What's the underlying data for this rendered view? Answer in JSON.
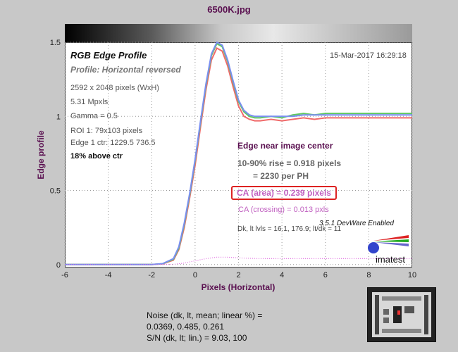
{
  "window_title": "6500K.jpg",
  "panel": {
    "heading": "RGB Edge Profile",
    "profile": "Profile: Horizontal reversed",
    "timestamp": "15-Mar-2017 16:29:18",
    "info_lines": [
      "2592 x 2048 pixels (WxH)",
      "5.31 Mpxls",
      "Gamma = 0.5",
      "ROI 1: 79x103 pixels",
      "Edge 1 ctr: 1229.5  736.5"
    ],
    "position": "18% above ctr"
  },
  "annotations": {
    "edge_title": "Edge near image center",
    "rise": "10-90% rise = 0.918 pixels",
    "per_ph": "= 2230 per PH",
    "ca_area": "CA (area) = 0.239 pixels",
    "ca_crossing": "CA (crossing) = 0.013 pxls",
    "levels": "Dk, lt lvls = 16.1, 176.9;  lt/dk = 11",
    "version": "3.5.1  DevWare Enabled",
    "brand": "imatest"
  },
  "noise": {
    "line1": "Noise (dk, lt, mean; linear %) =",
    "line2": "0.0369,  0.485,  0.261",
    "line3": "S/N (dk, lt; lin.) = 9.03,  100"
  },
  "colors": {
    "red": "#f06a6a",
    "green": "#60c860",
    "blue": "#7a8ef0",
    "pink": "#e070e0",
    "label": "#5a1050"
  },
  "chart_data": {
    "type": "line",
    "xlabel": "Pixels (Horizontal)",
    "ylabel": "Edge profile",
    "xlim": [
      -6,
      10
    ],
    "ylim": [
      -0.02,
      1.5
    ],
    "xticks": [
      "-6",
      "-4",
      "-2",
      "0",
      "2",
      "4",
      "6",
      "8",
      "10"
    ],
    "yticks": [
      "0",
      "0.5",
      "1",
      "1.5"
    ],
    "series": [
      {
        "color": "red",
        "x": [
          -6,
          -3,
          -2,
          -1.5,
          -1,
          -0.75,
          -0.5,
          -0.25,
          0,
          0.25,
          0.5,
          0.75,
          1,
          1.25,
          1.5,
          1.75,
          2,
          2.25,
          2.5,
          2.75,
          3,
          3.5,
          4,
          4.5,
          5,
          5.5,
          6,
          7,
          8,
          9,
          10
        ],
        "y": [
          0,
          0,
          0,
          0.005,
          0.03,
          0.1,
          0.25,
          0.45,
          0.67,
          0.93,
          1.18,
          1.38,
          1.46,
          1.44,
          1.34,
          1.2,
          1.07,
          1.0,
          0.98,
          0.97,
          0.97,
          0.98,
          0.97,
          0.98,
          0.99,
          0.98,
          0.99,
          0.99,
          0.99,
          0.99,
          0.99
        ]
      },
      {
        "color": "green",
        "x": [
          -6,
          -3,
          -2,
          -1.5,
          -1,
          -0.75,
          -0.5,
          -0.25,
          0,
          0.25,
          0.5,
          0.75,
          1,
          1.25,
          1.5,
          1.75,
          2,
          2.25,
          2.5,
          2.75,
          3,
          3.5,
          4,
          4.5,
          5,
          5.5,
          6,
          7,
          8,
          9,
          10
        ],
        "y": [
          0,
          0,
          0,
          0.005,
          0.035,
          0.11,
          0.27,
          0.47,
          0.7,
          0.96,
          1.21,
          1.41,
          1.49,
          1.47,
          1.37,
          1.23,
          1.1,
          1.03,
          1.0,
          0.99,
          0.99,
          1.0,
          0.99,
          1.01,
          1.02,
          1.01,
          1.02,
          1.02,
          1.02,
          1.02,
          1.02
        ]
      },
      {
        "color": "blue",
        "x": [
          -6,
          -3,
          -2,
          -1.5,
          -1,
          -0.75,
          -0.5,
          -0.25,
          0,
          0.25,
          0.5,
          0.75,
          1,
          1.25,
          1.5,
          1.75,
          2,
          2.25,
          2.5,
          2.75,
          3,
          3.5,
          4,
          4.5,
          5,
          5.5,
          6,
          7,
          8,
          9,
          10
        ],
        "y": [
          0,
          0,
          0,
          0.006,
          0.04,
          0.12,
          0.28,
          0.48,
          0.71,
          0.97,
          1.22,
          1.42,
          1.5,
          1.48,
          1.38,
          1.24,
          1.11,
          1.04,
          1.01,
          1.0,
          1.0,
          1.0,
          1.0,
          1.0,
          1.01,
          1.01,
          1.01,
          1.01,
          1.01,
          1.01,
          1.01
        ]
      },
      {
        "color": "pink",
        "x": [
          -6,
          -2,
          -1,
          -0.5,
          0,
          0.5,
          1,
          1.5,
          2,
          3,
          4,
          6,
          8,
          10
        ],
        "y": [
          0,
          0,
          0.002,
          0.01,
          0.025,
          0.04,
          0.05,
          0.05,
          0.045,
          0.04,
          0.04,
          0.04,
          0.04,
          0.04
        ]
      }
    ]
  }
}
